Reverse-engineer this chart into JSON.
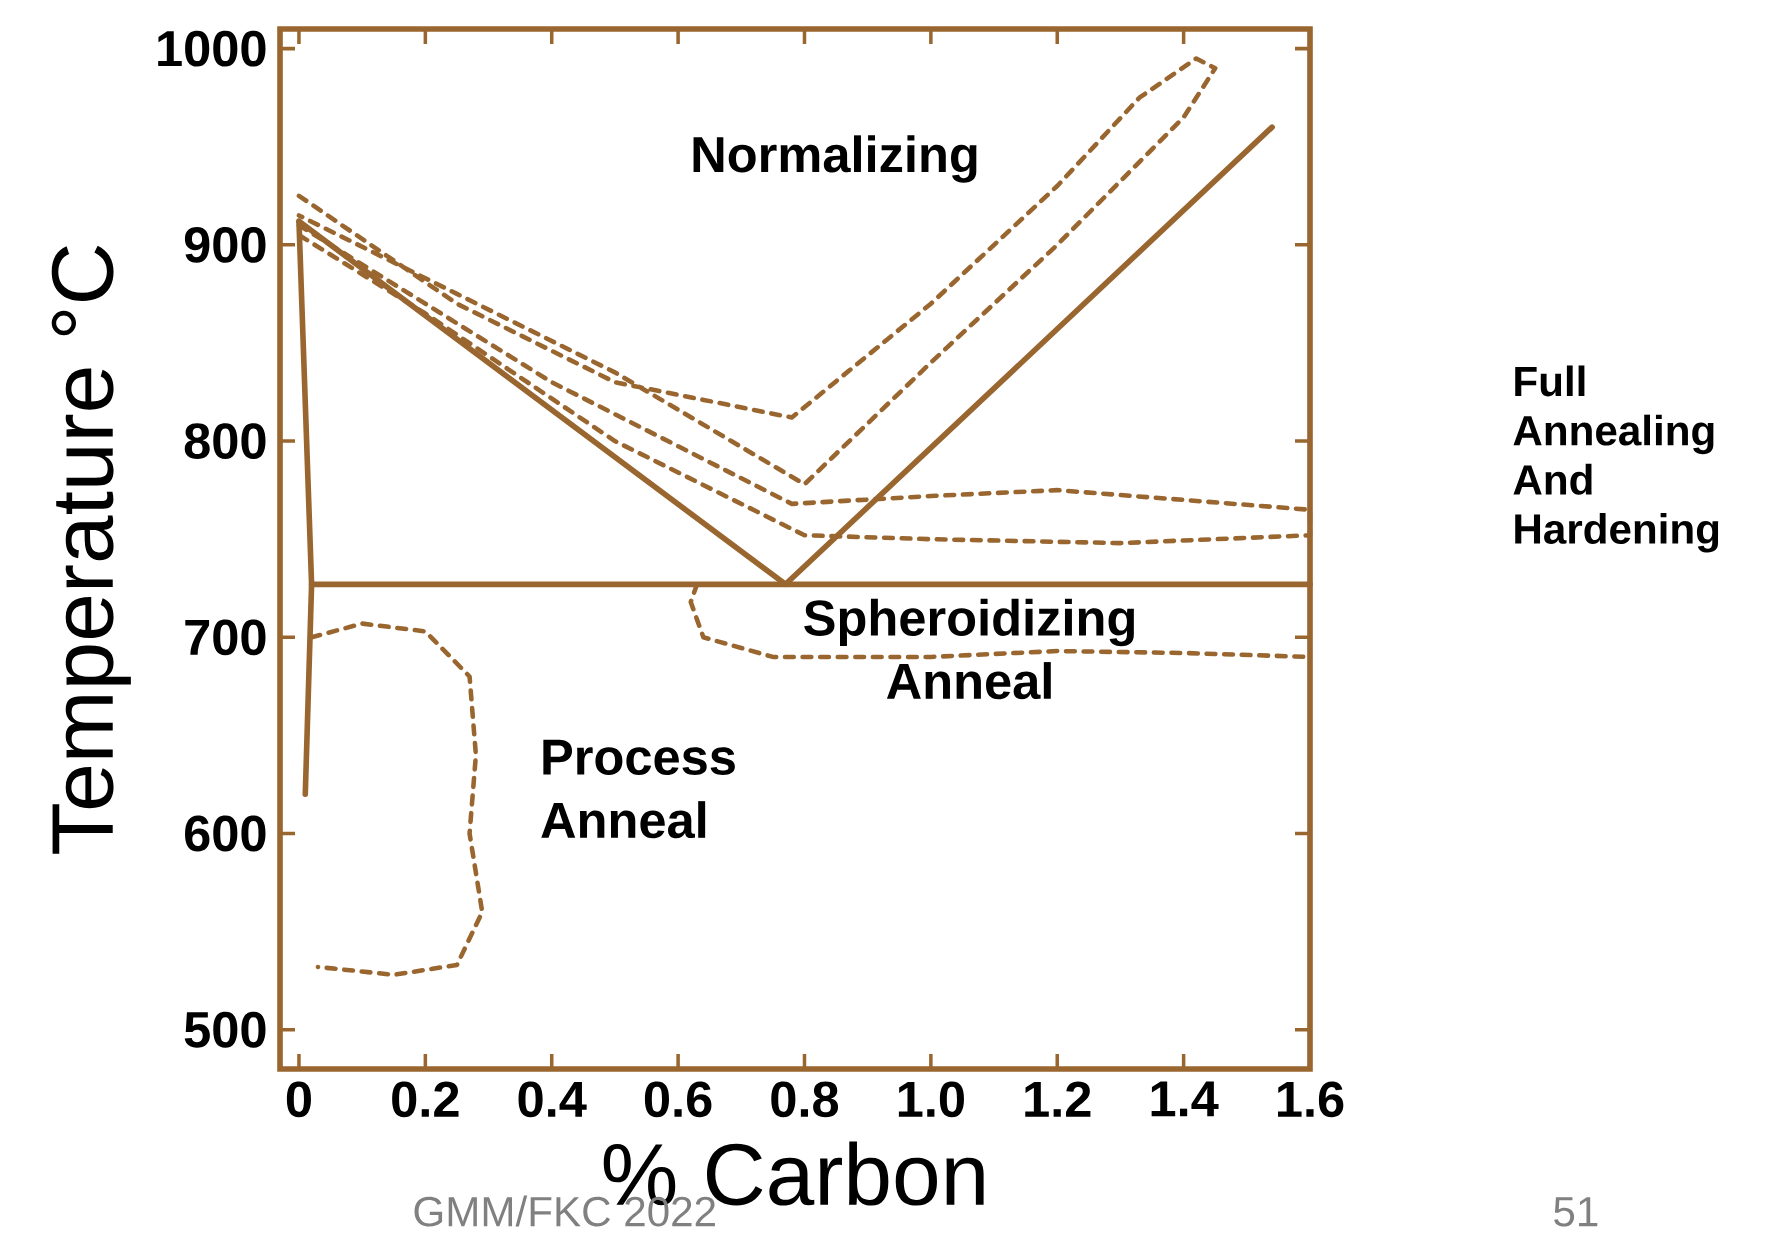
{
  "chart_data": {
    "type": "line",
    "xlabel": "% Carbon",
    "ylabel": "Temperature °C",
    "xlim": [
      -0.03,
      1.6
    ],
    "ylim": [
      480,
      1010
    ],
    "xticks": [
      0,
      0.2,
      0.4,
      0.6,
      0.8,
      {
        "value": 1,
        "label": "1.0"
      },
      1.2,
      1.4,
      1.6
    ],
    "yticks": [
      500,
      600,
      700,
      800,
      900,
      1000
    ],
    "marker": "none",
    "grid": false,
    "series": [
      {
        "color": "#9a6630",
        "line_style": "solid",
        "x": [
          0,
          0.77,
          1.54
        ],
        "values": [
          912,
          727,
          960
        ]
      },
      {
        "color": "#9a6630",
        "line_style": "solid",
        "x": [
          0.02,
          1.6
        ],
        "values": [
          727,
          727
        ]
      },
      {
        "color": "#9a6630",
        "line_style": "solid",
        "x": [
          0,
          0.02,
          0.01
        ],
        "values": [
          912,
          727,
          620
        ]
      },
      {
        "color": "#9a6630",
        "line_style": "dotted",
        "x": [
          0,
          0.25,
          0.5,
          0.78,
          1.0,
          1.2,
          1.33,
          1.42,
          1.45,
          1.4,
          1.2,
          1.0,
          0.8,
          0.5,
          0.25,
          0
        ],
        "values": [
          925,
          870,
          830,
          812,
          870,
          930,
          975,
          995,
          990,
          965,
          900,
          840,
          778,
          835,
          875,
          915
        ]
      },
      {
        "color": "#9a6630",
        "line_style": "dotted",
        "x": [
          0,
          0.4,
          0.78,
          1.0,
          1.2,
          1.4,
          1.6,
          1.6,
          1.3,
          1.0,
          0.8,
          0.5,
          0.2,
          0
        ],
        "values": [
          910,
          830,
          768,
          772,
          775,
          770,
          765,
          752,
          748,
          750,
          752,
          800,
          865,
          905
        ]
      },
      {
        "color": "#9a6630",
        "line_style": "dotted",
        "x": [
          0.63,
          0.62,
          0.64,
          0.75,
          1.0,
          1.2,
          1.4,
          1.6
        ],
        "values": [
          727,
          718,
          700,
          690,
          690,
          693,
          692,
          690
        ]
      },
      {
        "color": "#9a6630",
        "line_style": "dotted",
        "x": [
          0.02,
          0.1,
          0.2,
          0.27,
          0.28,
          0.27,
          0.29,
          0.25,
          0.15,
          0.03
        ],
        "values": [
          700,
          707,
          703,
          680,
          640,
          600,
          560,
          533,
          528,
          532
        ]
      }
    ],
    "annotations": [
      "Normalizing",
      "Spheroidizing Anneal",
      "Process Anneal",
      "Full Annealing And Hardening",
      "GMM/FKC 2022",
      "51"
    ]
  }
}
